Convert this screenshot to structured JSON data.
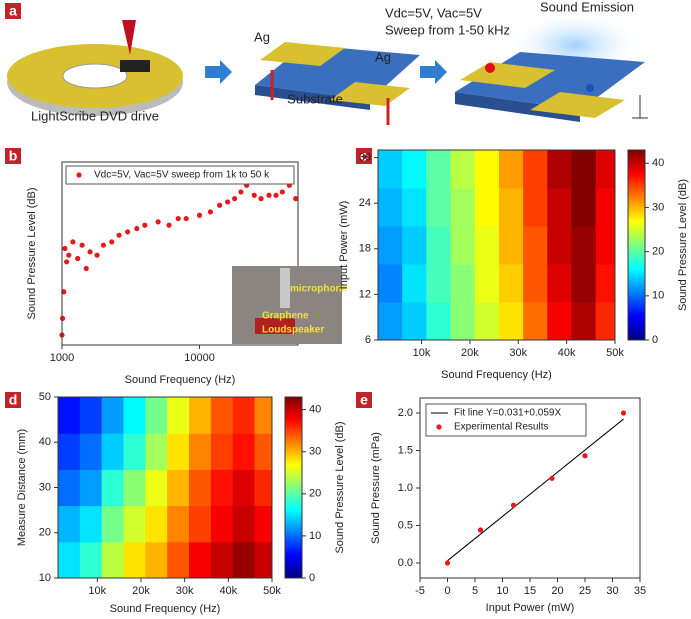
{
  "panel_labels": [
    "a",
    "b",
    "c",
    "d",
    "e"
  ],
  "diagram": {
    "labels": [
      "LightScribe DVD drive",
      "Ag",
      "Ag",
      "Substrate",
      "Vdc=5V, Vac=5V",
      "Sweep from 1-50 kHz",
      "Sound Emission"
    ]
  },
  "chart_data": [
    {
      "type": "scatter",
      "xlabel": "Sound Frequency (Hz)",
      "ylabel": "Sound Pressure Level (dB)",
      "xlog": true,
      "xlim": [
        1000,
        52000
      ],
      "xticks": [
        1000,
        10000
      ],
      "ylim": [
        -5,
        50
      ],
      "legend": "top",
      "annotations": [
        "microphone",
        "Graphene",
        "Loudspeaker"
      ],
      "series": [
        {
          "name": "Vdc=5V, Vac=5V sweep from 1k to 50 k",
          "color": "#e8191c",
          "style": "marker",
          "x": [
            1000,
            1010,
            1030,
            1050,
            1080,
            1120,
            1200,
            1300,
            1400,
            1500,
            1600,
            1800,
            2000,
            2300,
            2600,
            3000,
            3500,
            4000,
            5000,
            6000,
            7000,
            8000,
            10000,
            12000,
            14000,
            16000,
            18000,
            20000,
            22000,
            25000,
            28000,
            32000,
            36000,
            40000,
            45000,
            50000
          ],
          "values": [
            -2,
            3,
            11,
            24,
            20,
            22,
            26,
            21,
            25,
            18,
            23,
            22,
            25,
            26,
            28,
            29,
            30,
            31,
            32,
            31,
            33,
            33,
            34,
            35,
            37,
            38,
            39,
            41,
            43,
            40,
            39,
            40,
            40,
            41,
            43,
            39
          ]
        }
      ]
    },
    {
      "type": "heatmap",
      "xlabel": "Sound Frequency (Hz)",
      "ylabel": "Input Power (mW)",
      "clabel": "Sound Pressure Level (dB)",
      "xlim": [
        1000,
        50000
      ],
      "xticks": [
        {
          "value": 10000,
          "label": "10k"
        },
        {
          "value": 20000,
          "label": "20k"
        },
        {
          "value": 30000,
          "label": "30k"
        },
        {
          "value": 40000,
          "label": "40k"
        },
        {
          "value": 50000,
          "label": "50k"
        }
      ],
      "ylim": [
        6,
        31
      ],
      "yticks": [
        6,
        12,
        18,
        24,
        30
      ],
      "clim": [
        0,
        43
      ],
      "cticks": [
        0,
        10,
        20,
        30,
        40
      ],
      "colormap": "jet",
      "x": [
        3500,
        8500,
        13500,
        18500,
        23500,
        28500,
        33500,
        38500,
        43500,
        48500
      ],
      "y": [
        8.5,
        13.5,
        18.5,
        23.5,
        28.5
      ],
      "values": [
        [
          12,
          14,
          18,
          22,
          25,
          28,
          33,
          38,
          41,
          36
        ],
        [
          11,
          15,
          19,
          22,
          26,
          29,
          34,
          39,
          42,
          37
        ],
        [
          12,
          14,
          19,
          23,
          26,
          30,
          34,
          40,
          42,
          38
        ],
        [
          13,
          15,
          20,
          23,
          27,
          30,
          35,
          40,
          43,
          38
        ],
        [
          14,
          16,
          20,
          24,
          27,
          31,
          35,
          41,
          43,
          39
        ]
      ]
    },
    {
      "type": "heatmap",
      "xlabel": "Sound Frequency (Hz)",
      "ylabel": "Measure Distance (mm)",
      "clabel": "Sound Pressure Level (dB)",
      "xlim": [
        1000,
        50000
      ],
      "xticks": [
        {
          "value": 10000,
          "label": "10k"
        },
        {
          "value": 20000,
          "label": "20k"
        },
        {
          "value": 30000,
          "label": "30k"
        },
        {
          "value": 40000,
          "label": "40k"
        },
        {
          "value": 50000,
          "label": "50k"
        }
      ],
      "ylim": [
        10,
        50
      ],
      "yticks": [
        10,
        20,
        30,
        40,
        50
      ],
      "clim": [
        0,
        43
      ],
      "cticks": [
        0,
        10,
        20,
        30,
        40
      ],
      "colormap": "jet",
      "x": [
        3500,
        8500,
        13500,
        18500,
        23500,
        28500,
        33500,
        38500,
        43500,
        48500
      ],
      "y": [
        14,
        22,
        30,
        38,
        46
      ],
      "values": [
        [
          15,
          18,
          24,
          28,
          30,
          34,
          38,
          40,
          42,
          40
        ],
        [
          13,
          15,
          21,
          25,
          28,
          32,
          35,
          38,
          40,
          38
        ],
        [
          10,
          12,
          18,
          22,
          26,
          30,
          34,
          37,
          39,
          36
        ],
        [
          8,
          10,
          14,
          18,
          23,
          28,
          32,
          35,
          37,
          34
        ],
        [
          6,
          8,
          12,
          16,
          21,
          26,
          30,
          34,
          36,
          32
        ]
      ]
    },
    {
      "type": "scatter",
      "xlabel": "Input Power (mW)",
      "ylabel": "Sound Pressure (mPa)",
      "xlim": [
        -5,
        35
      ],
      "xticks": [
        -5,
        0,
        5,
        10,
        15,
        20,
        25,
        30,
        35
      ],
      "ylim": [
        -0.2,
        2.2
      ],
      "yticks": [
        {
          "value": 0,
          "label": "0.0"
        },
        {
          "value": 0.5,
          "label": "0.5"
        },
        {
          "value": 1,
          "label": "1.0"
        },
        {
          "value": 1.5,
          "label": "1.5"
        },
        {
          "value": 2,
          "label": "2.0"
        }
      ],
      "legend": "top-left",
      "series": [
        {
          "name": "Fit line Y=0.031+0.059X",
          "color": "#000000",
          "style": "line",
          "x": [
            0,
            32
          ],
          "values": [
            0.031,
            1.919
          ]
        },
        {
          "name": "Experimental Results",
          "color": "#e8191c",
          "style": "marker",
          "x": [
            0,
            6,
            12,
            19,
            25,
            32
          ],
          "values": [
            0,
            0.44,
            0.77,
            1.13,
            1.43,
            2.0
          ]
        }
      ]
    }
  ]
}
